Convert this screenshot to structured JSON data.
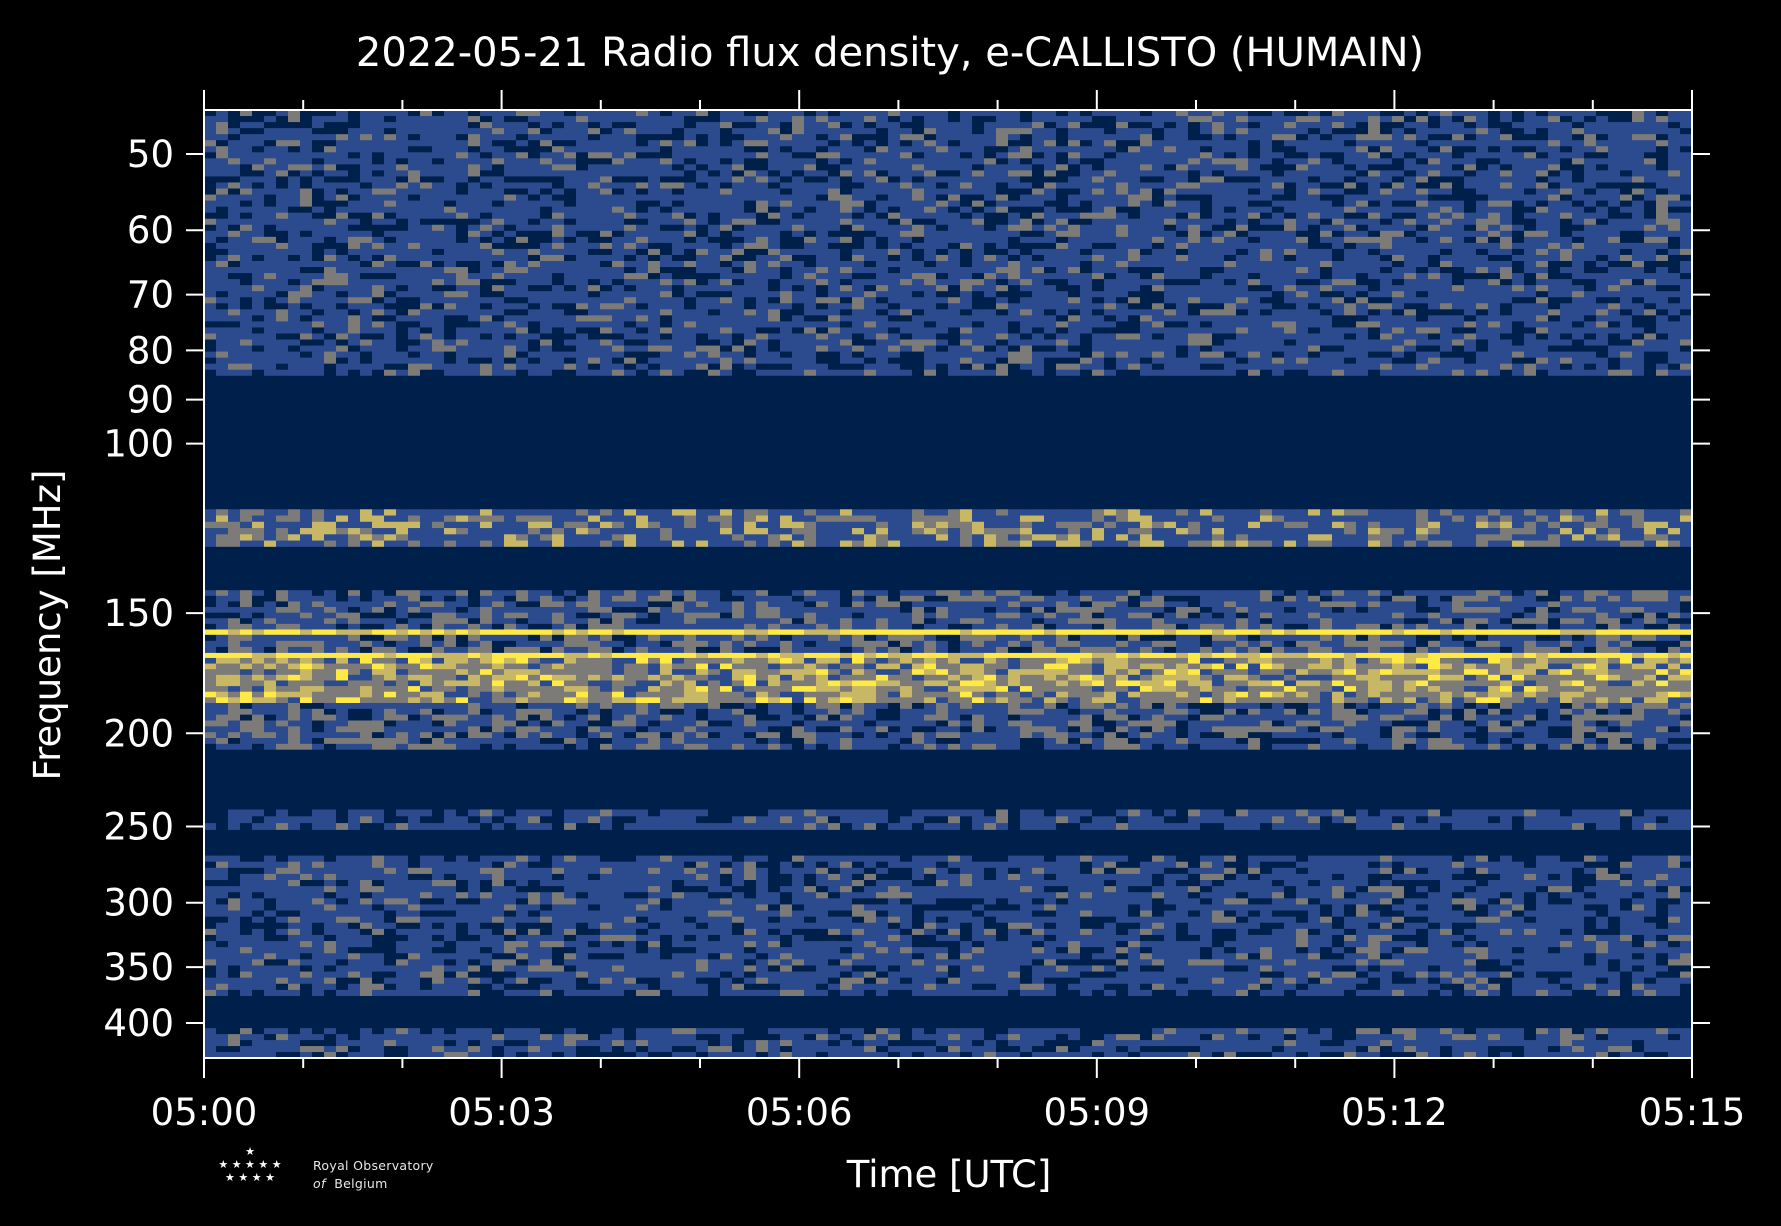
{
  "chart_data": {
    "type": "heatmap",
    "title": "2022-05-21 Radio flux density, e-CALLISTO (HUMAIN)",
    "xlabel": "Time [UTC]",
    "ylabel": "Frequency [MHz]",
    "x_ticks": [
      "05:00",
      "05:03",
      "05:06",
      "05:09",
      "05:12",
      "05:15"
    ],
    "x_range_minutes": [
      0,
      15
    ],
    "y_ticks": [
      50,
      60,
      70,
      80,
      90,
      100,
      150,
      200,
      250,
      300,
      350,
      400
    ],
    "y_range_mhz": [
      45,
      435
    ],
    "y_scale": "log",
    "colormap": [
      "#00204c",
      "#2b4b8e",
      "#7c7b78",
      "#c8b866",
      "#ffe945"
    ],
    "frequency_bands": [
      {
        "from": 45,
        "to": 85,
        "level": "noise-low"
      },
      {
        "from": 85,
        "to": 117,
        "level": "blank"
      },
      {
        "from": 117,
        "to": 128,
        "level": "bursty"
      },
      {
        "from": 128,
        "to": 142,
        "level": "blank"
      },
      {
        "from": 142,
        "to": 156,
        "level": "noise-mid"
      },
      {
        "from": 156,
        "to": 158,
        "level": "strong"
      },
      {
        "from": 158,
        "to": 165,
        "level": "noise-mid"
      },
      {
        "from": 165,
        "to": 167,
        "level": "strong"
      },
      {
        "from": 167,
        "to": 186,
        "level": "bright-bursty"
      },
      {
        "from": 186,
        "to": 208,
        "level": "noise-mid"
      },
      {
        "from": 208,
        "to": 240,
        "level": "blank"
      },
      {
        "from": 240,
        "to": 252,
        "level": "noise-low"
      },
      {
        "from": 252,
        "to": 268,
        "level": "blank"
      },
      {
        "from": 268,
        "to": 375,
        "level": "noise-low"
      },
      {
        "from": 375,
        "to": 405,
        "level": "blank"
      },
      {
        "from": 405,
        "to": 435,
        "level": "noise-low"
      }
    ]
  },
  "branding": {
    "line1": "Royal Observatory",
    "line2_prefix": "of",
    "line2": "Belgium"
  }
}
